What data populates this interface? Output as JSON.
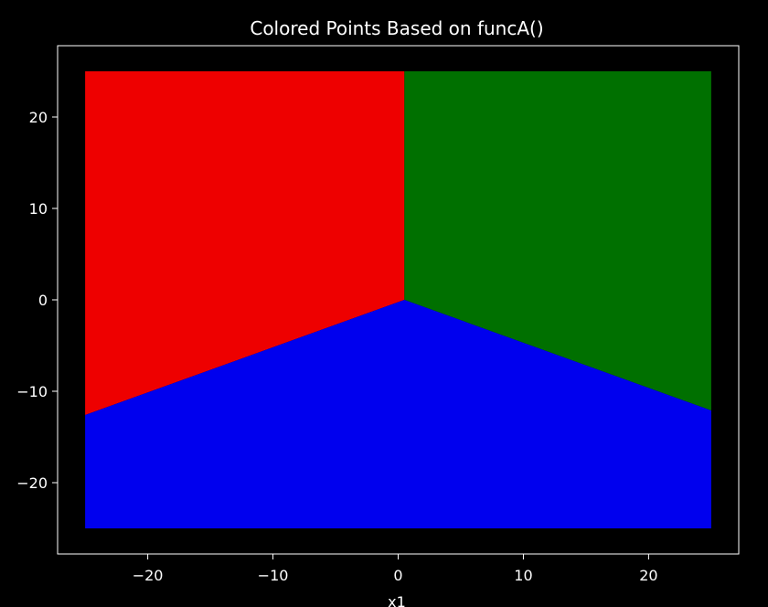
{
  "chart_data": {
    "type": "scatter",
    "title": "Colored Points Based on funcA()",
    "xlabel": "x1",
    "ylabel": "",
    "xlim": [
      -27.2,
      27.2
    ],
    "ylim": [
      -27.8,
      27.8
    ],
    "grid": false,
    "x_ticks": [
      -20,
      -10,
      0,
      10,
      20
    ],
    "y_ticks": [
      20,
      10,
      0,
      -10,
      -20
    ],
    "x_tick_labels": [
      "−20",
      "−10",
      "0",
      "10",
      "20"
    ],
    "y_tick_labels": [
      "20",
      "10",
      "0",
      "−10",
      "−20"
    ],
    "point_grid": {
      "x_range": [
        -25,
        25
      ],
      "y_range": [
        -25,
        25
      ]
    },
    "regions": [
      {
        "color": "#ee0000",
        "polygon": [
          [
            -25,
            25
          ],
          [
            0.5,
            25
          ],
          [
            0.5,
            0
          ],
          [
            -25,
            -12.6
          ]
        ]
      },
      {
        "color": "#007000",
        "polygon": [
          [
            0.5,
            25
          ],
          [
            25,
            25
          ],
          [
            25,
            -12.1
          ],
          [
            0.5,
            0
          ]
        ]
      },
      {
        "color": "#0000ee",
        "polygon": [
          [
            -25,
            -12.6
          ],
          [
            0.5,
            0
          ],
          [
            25,
            -12.1
          ],
          [
            25,
            -25
          ],
          [
            -25,
            -25
          ]
        ]
      }
    ]
  }
}
